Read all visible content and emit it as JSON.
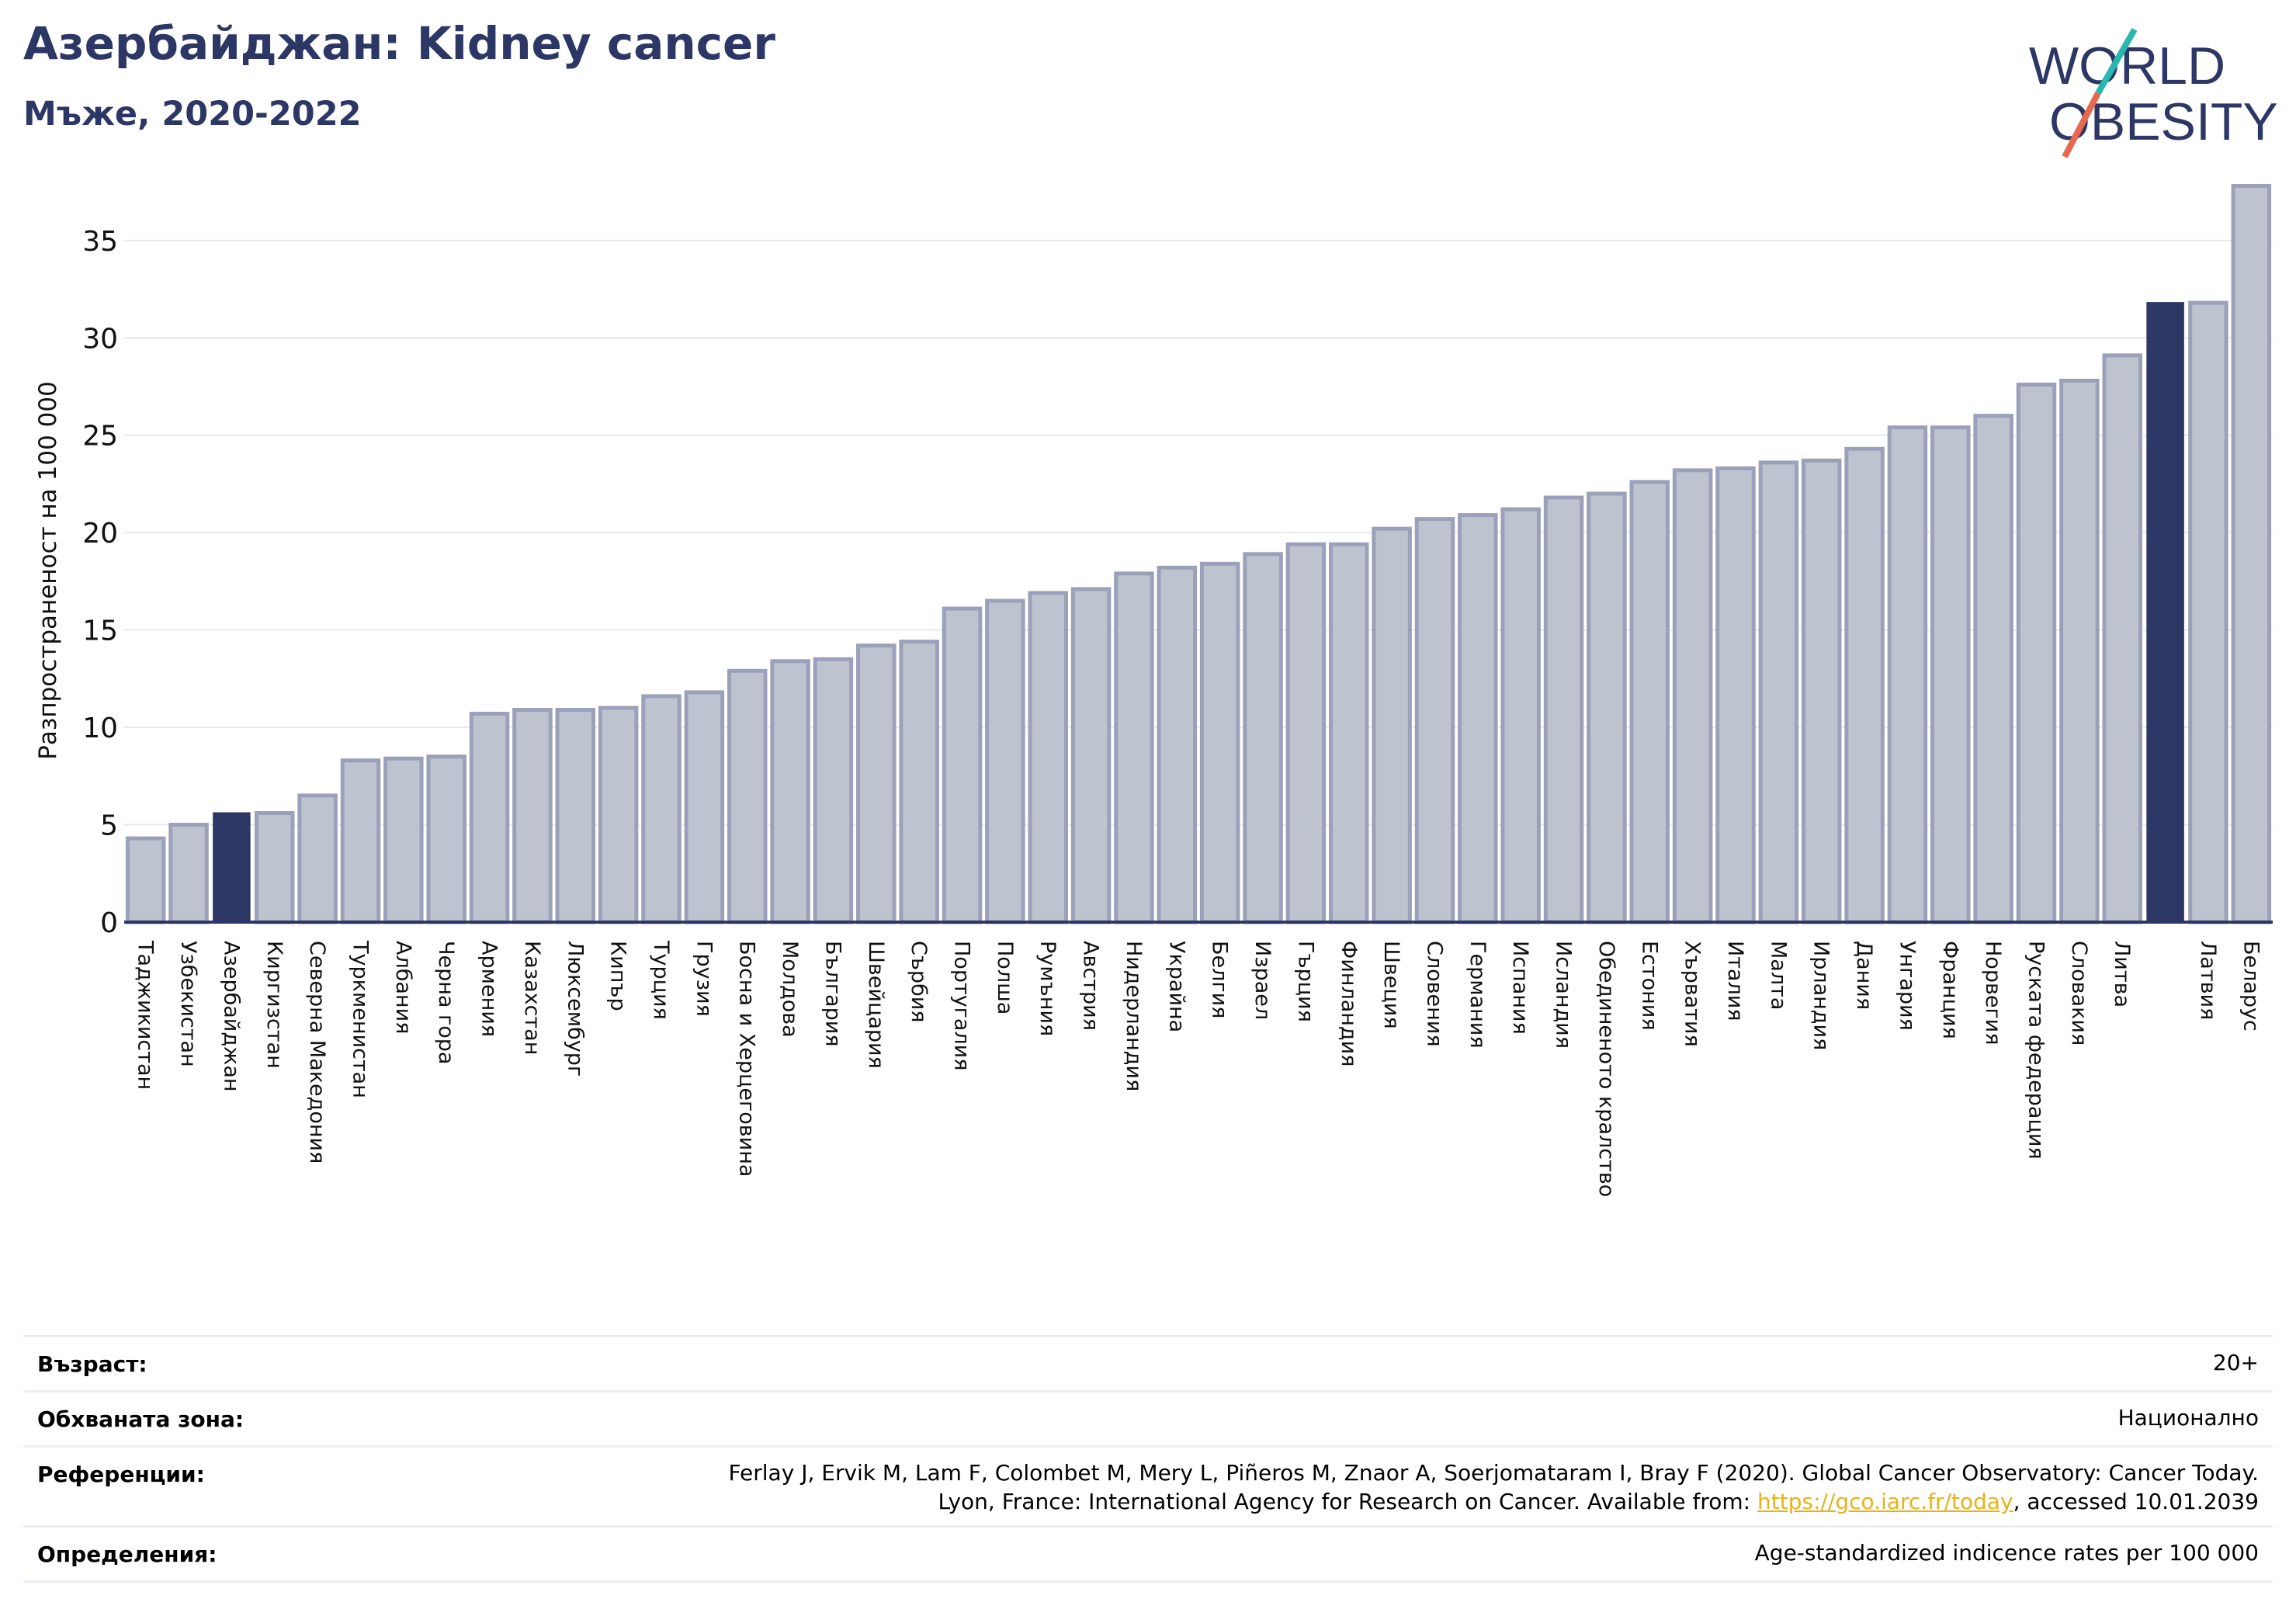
{
  "header": {
    "title": "Азербайджан: Kidney cancer",
    "subtitle": "Мъже, 2020-2022"
  },
  "logo": {
    "line1": "WORLD",
    "line2": "OBESITY",
    "colors": {
      "text": "#2c3765",
      "slash_top": "#2ab7b0",
      "slash_bottom": "#e8684f"
    }
  },
  "colors": {
    "highlight": "#2c3765",
    "bar_fill": "#bec3d0",
    "bar_edge": "#9aa1b8",
    "grid": "#e6e8ee",
    "axis": "#2c3765"
  },
  "chart_data": {
    "type": "bar",
    "title": "",
    "xlabel": "",
    "ylabel": "Разпространеност  на 100 000",
    "ylim": [
      0,
      38.5
    ],
    "yticks": [
      0,
      5,
      10,
      15,
      20,
      25,
      30,
      35
    ],
    "grid": true,
    "highlight_categories": [
      "Азербайджан"
    ],
    "categories": [
      "Таджикистан",
      "Узбекистан",
      "Азербайджан",
      "Киргизстан",
      "Северна Македония",
      "Туркменистан",
      "Албания",
      "Черна гора",
      "Армения",
      "Казахстан",
      "Люксембург",
      "Кипър",
      "Турция",
      "Грузия",
      "Босна и Херцеговина",
      "Молдова",
      "България",
      "Швейцария",
      "Сърбия",
      "Португалия",
      "Полша",
      "Румъния",
      "Австрия",
      "Нидерландия",
      "Украйна",
      "Белгия",
      "Израел",
      "Гърция",
      "Финландия",
      "Швеция",
      "Словения",
      "Германия",
      "Испания",
      "Исландия",
      "Обединеното кралство",
      "Естония",
      "Хърватия",
      "Италия",
      "Малта",
      "Ирландия",
      "Дания",
      "Унгария",
      "Франция",
      "Норвегия",
      "Руската федерация",
      "Словакия",
      "Литва",
      "",
      "Латвия",
      "Беларус"
    ],
    "values": [
      4.3,
      5.0,
      5.6,
      5.6,
      6.5,
      8.3,
      8.4,
      8.5,
      10.7,
      10.9,
      10.9,
      11.0,
      11.6,
      11.8,
      12.9,
      13.4,
      13.5,
      14.2,
      14.4,
      16.1,
      16.5,
      16.9,
      17.1,
      17.9,
      18.2,
      18.4,
      18.9,
      19.4,
      19.4,
      20.2,
      20.7,
      20.9,
      21.2,
      21.8,
      22.0,
      22.6,
      23.2,
      23.3,
      23.6,
      23.7,
      24.3,
      25.4,
      25.4,
      26.0,
      27.6,
      27.8,
      29.1,
      31.8,
      31.8,
      37.8
    ]
  },
  "info": {
    "age_label": "Възраст:",
    "age_value": "20+",
    "coverage_label": "Обхваната зона:",
    "coverage_value": "Национално",
    "references_label": "Референции:",
    "references_line1": "Ferlay J, Ervik M, Lam F, Colombet M, Mery L, Piñeros M, Znaor A, Soerjomataram I, Bray F (2020). Global Cancer Observatory: Cancer Today.",
    "references_line2_prefix": "Lyon, France: International Agency for Research on Cancer. Available from: ",
    "references_link": "https://gco.iarc.fr/today",
    "references_line2_suffix": ", accessed 10.01.2039",
    "definitions_label": "Определения:",
    "definitions_value": "Age-standardized indicence rates per 100 000"
  }
}
